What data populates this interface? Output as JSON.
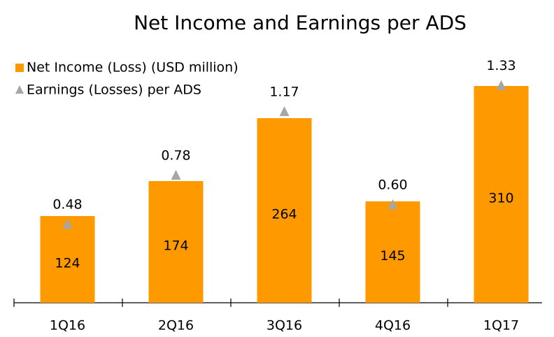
{
  "chart_data": {
    "type": "bar",
    "title": "Net Income and Earnings per ADS",
    "categories": [
      "1Q16",
      "2Q16",
      "3Q16",
      "4Q16",
      "1Q17"
    ],
    "series": [
      {
        "name": "Net Income (Loss) (USD million)",
        "color": "#ff9900",
        "values": [
          124,
          174,
          264,
          145,
          310
        ]
      },
      {
        "name": "Earnings (Losses) per ADS",
        "color": "#a6a6a6",
        "axis": "y2",
        "values": [
          0.48,
          0.78,
          1.17,
          0.6,
          1.33
        ],
        "value_labels": [
          "0.48",
          "0.78",
          "1.17",
          "0.60",
          "1.33"
        ]
      }
    ],
    "ylim": [
      0,
      350
    ],
    "y2lim": [
      0,
      1.5
    ],
    "legend": "upper left"
  }
}
